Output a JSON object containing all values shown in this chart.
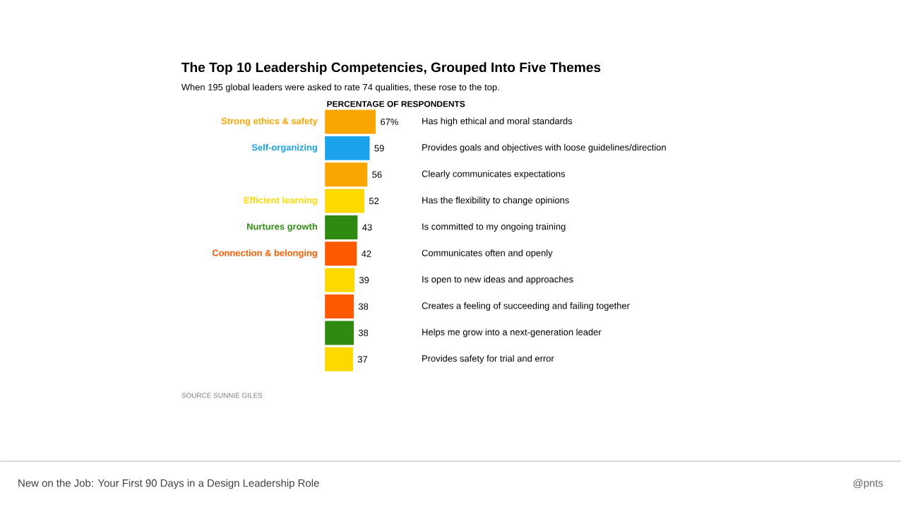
{
  "chart_data": {
    "type": "bar",
    "orientation": "horizontal",
    "title": "The Top 10 Leadership Competencies, Grouped Into Five Themes",
    "subtitle": "When 195 global leaders were asked to rate 74 qualities, these rose to the top.",
    "xlabel": "PERCENTAGE OF RESPONDENTS",
    "categories": [
      "Has high ethical and moral standards",
      "Provides goals and objectives with loose guidelines/direction",
      "Clearly communicates expectations",
      "Has the flexibility to change opinions",
      "Is committed to my ongoing training",
      "Communicates often and openly",
      "Is open to new ideas and approaches",
      "Creates a feeling of succeeding and failing together",
      "Helps me grow into a next-generation leader",
      "Provides safety for trial and error"
    ],
    "series": [
      {
        "name": "Strong ethics & safety",
        "color": "#f9a602",
        "values": [
          67,
          null,
          56,
          null,
          null,
          null,
          null,
          null,
          null,
          null
        ],
        "value_labels": [
          "67%",
          null,
          "56",
          null,
          null,
          null,
          null,
          null,
          null,
          null
        ]
      },
      {
        "name": "Self-organizing",
        "color": "#1aa3ea",
        "values": [
          null,
          59,
          null,
          null,
          null,
          null,
          null,
          null,
          null,
          null
        ],
        "value_labels": [
          null,
          "59",
          null,
          null,
          null,
          null,
          null,
          null,
          null,
          null
        ]
      },
      {
        "name": "Efficient learning",
        "color": "#fdd900",
        "values": [
          null,
          null,
          null,
          52,
          null,
          null,
          39,
          null,
          null,
          37
        ],
        "value_labels": [
          null,
          null,
          null,
          "52",
          null,
          null,
          "39",
          null,
          null,
          "37"
        ]
      },
      {
        "name": "Nurtures growth",
        "color": "#2f8a12",
        "values": [
          null,
          null,
          null,
          null,
          43,
          null,
          null,
          null,
          38,
          null
        ],
        "value_labels": [
          null,
          null,
          null,
          null,
          "43",
          null,
          null,
          null,
          "38",
          null
        ]
      },
      {
        "name": "Connection & belonging",
        "color": "#fd5a00",
        "values": [
          null,
          null,
          null,
          null,
          null,
          42,
          null,
          38,
          null,
          null
        ],
        "value_labels": [
          null,
          null,
          null,
          null,
          null,
          "42",
          null,
          "38",
          null,
          null
        ]
      }
    ],
    "xlim": [
      0,
      67
    ],
    "tick_labels": "y",
    "annotations": [
      "SOURCE SUNNIE GILES",
      "New on the Job: Your First 90 Days in a Design Leadership Role",
      "@pnts"
    ]
  }
}
